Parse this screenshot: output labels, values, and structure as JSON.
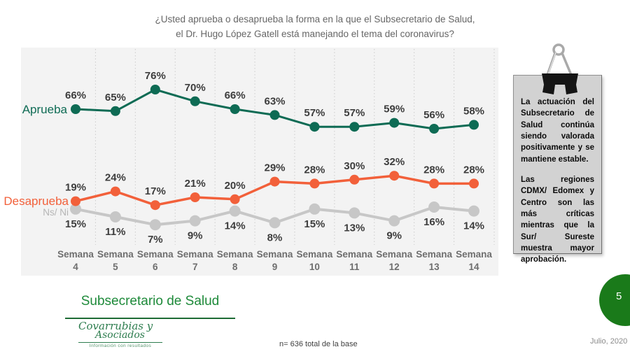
{
  "slide": {
    "title_line1": "¿Usted aprueba o desaprueba la forma en la que el Subsecretario de Salud,",
    "title_line2": "el Dr. Hugo López Gatell está manejando el tema del coronavirus?",
    "section_title": "Subsecretario de Salud",
    "base_note": "n= 636 total de la base",
    "date": "Julio, 2020",
    "page_number": "5"
  },
  "note_box": {
    "paragraph1": "La actuación del Subsecretario de Salud continúa siendo valorada positivamente y se mantiene estable.",
    "paragraph2": "Las regiones CDMX/ Edomex y Centro son las más críticas mientras que la Sur/ Sureste muestra mayor aprobación."
  },
  "logo": {
    "line1": "Covarrubias y",
    "line2": "Asociados",
    "tagline": "Información con resultados"
  },
  "colors": {
    "aprueba": "#0e6b54",
    "desaprueba": "#f2603a",
    "ns_ni_line": "#c7c7c7",
    "ns_ni_label": "#b5b5b5",
    "value_label": "#3d3d3d",
    "axis_label": "#6e6e6e",
    "plot_background": "#f3f3f3",
    "gridline": "#cfcfcf",
    "section_green": "#1e8a3a",
    "page_circle_green": "#1a7a1a"
  },
  "chart_data": {
    "type": "line",
    "title": "¿Usted aprueba o desaprueba la forma en la que el Subsecretario de Salud, el Dr. Hugo López Gatell está manejando el tema del coronavirus?",
    "x_prefix": "Semana",
    "categories": [
      "4",
      "5",
      "6",
      "7",
      "8",
      "9",
      "10",
      "11",
      "12",
      "13",
      "14"
    ],
    "series": [
      {
        "name": "Aprueba",
        "color": "#0e6b54",
        "name_color": "#0e6b54",
        "label_position": "above",
        "values": [
          66,
          65,
          76,
          70,
          66,
          63,
          57,
          57,
          59,
          56,
          58
        ]
      },
      {
        "name": "Desaprueba",
        "color": "#f2603a",
        "name_color": "#f2603a",
        "label_position": "above",
        "values": [
          19,
          24,
          17,
          21,
          20,
          29,
          28,
          30,
          32,
          28,
          28
        ]
      },
      {
        "name": "Ns/ Ni",
        "color": "#c7c7c7",
        "name_color": "#b5b5b5",
        "label_position": "below",
        "values": [
          15,
          11,
          7,
          9,
          14,
          8,
          15,
          13,
          9,
          16,
          14
        ]
      }
    ],
    "value_suffix": "%",
    "ylim": [
      0,
      100
    ],
    "grid": "vertical-dashed",
    "legend_position": "inline-left-of-first-point"
  }
}
